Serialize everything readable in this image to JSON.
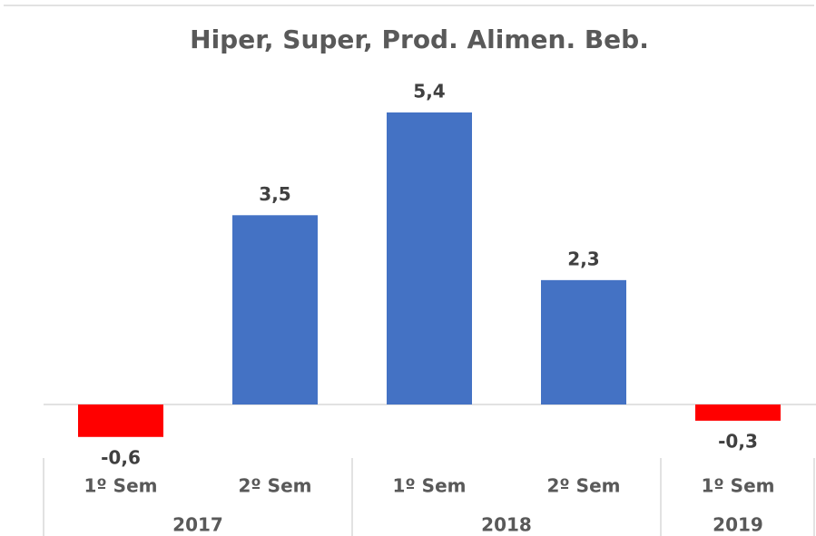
{
  "chart_data": {
    "type": "bar",
    "title": "Hiper, Super, Prod. Alimen. Beb.",
    "groups": [
      {
        "name": "2017",
        "categories": [
          "1º Sem",
          "2º Sem"
        ]
      },
      {
        "name": "2018",
        "categories": [
          "1º Sem",
          "2º Sem"
        ]
      },
      {
        "name": "2019",
        "categories": [
          "1º Sem"
        ]
      }
    ],
    "values": [
      -0.6,
      3.5,
      5.4,
      2.3,
      -0.3
    ],
    "value_labels": [
      "-0,6",
      "3,5",
      "5,4",
      "2,3",
      "-0,3"
    ],
    "colors": [
      "#ff0000",
      "#4472c4",
      "#4472c4",
      "#4472c4",
      "#ff0000"
    ]
  }
}
